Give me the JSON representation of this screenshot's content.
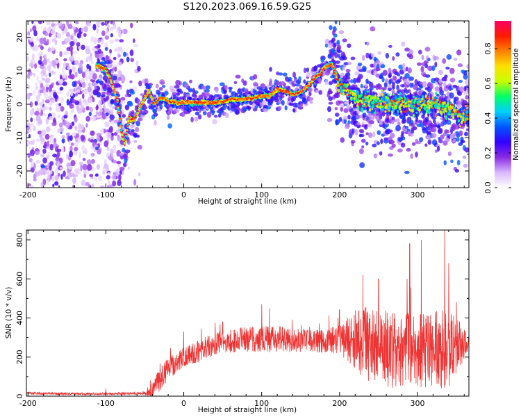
{
  "title": "S120.2023.069.16.59.G25",
  "chart_data": [
    {
      "type": "heatmap",
      "title": "S120.2023.069.16.59.G25",
      "xlabel": "Height of straight line (km)",
      "ylabel": "Frequency (Hz)",
      "xlim": [
        -202,
        366
      ],
      "ylim": [
        -25,
        25
      ],
      "xticks": [
        -200,
        -100,
        0,
        100,
        200,
        300
      ],
      "yticks": [
        -20,
        -10,
        0,
        10,
        20
      ],
      "colorbar": {
        "label": "Normalized spectral amplitude",
        "range": [
          0,
          0.96
        ],
        "ticks": [
          0.0,
          0.2,
          0.4,
          0.6,
          0.8
        ],
        "colormap": [
          "#ffffff",
          "#d9b8ff",
          "#8a2be2",
          "#3300ff",
          "#0055ff",
          "#00cfff",
          "#00ff66",
          "#c6ff00",
          "#ffe000",
          "#ff8000",
          "#ff1a00",
          "#ff0066"
        ]
      },
      "ridge": {
        "name": "dominant frequency",
        "x": [
          -110,
          -100,
          -92,
          -85,
          -80,
          -76,
          -70,
          -65,
          -58,
          -52,
          -45,
          -38,
          -30,
          -20,
          -10,
          0,
          20,
          40,
          55,
          60,
          80,
          100,
          110,
          120,
          130,
          140,
          150,
          160,
          170,
          175,
          180,
          190,
          195,
          200,
          210,
          220,
          240,
          260,
          280,
          300,
          320,
          340,
          355,
          366
        ],
        "y": [
          11.5,
          10.5,
          6,
          1,
          -8,
          -12,
          -4,
          -5,
          -2,
          1,
          4,
          0,
          2,
          1,
          0.5,
          0.5,
          0.5,
          0.5,
          1,
          1.5,
          1.5,
          2.5,
          2.5,
          4.5,
          4,
          3,
          3.5,
          5.5,
          8.5,
          9,
          11,
          12,
          9,
          6,
          4,
          1.5,
          1,
          0.5,
          0,
          -0.5,
          0,
          -1.5,
          -3.5,
          -3.5
        ]
      },
      "noise_region_x": [
        -202,
        -75
      ]
    },
    {
      "type": "line",
      "xlabel": "Height of straight line (km)",
      "ylabel": "SNR (10 * v/v)",
      "xlim": [
        -202,
        366
      ],
      "ylim": [
        0,
        850
      ],
      "xticks": [
        -200,
        -100,
        0,
        100,
        200,
        300
      ],
      "yticks": [
        0,
        200,
        400,
        600,
        800
      ],
      "color": "#ee3333",
      "series": [
        {
          "x": [
            -202,
            -150,
            -100,
            -50,
            -40,
            -30,
            -20,
            -10,
            0,
            20,
            40,
            60,
            80,
            100,
            120,
            140,
            160,
            180,
            200,
            210,
            220,
            240,
            260,
            280,
            300,
            320,
            340,
            355,
            366
          ],
          "baseline": [
            15,
            12,
            12,
            15,
            30,
            90,
            140,
            170,
            200,
            230,
            270,
            280,
            290,
            290,
            295,
            285,
            285,
            280,
            290,
            290,
            280,
            260,
            240,
            240,
            230,
            235,
            240,
            260,
            275
          ],
          "spread": [
            6,
            6,
            6,
            8,
            40,
            60,
            60,
            50,
            50,
            60,
            60,
            60,
            70,
            70,
            70,
            60,
            60,
            60,
            80,
            110,
            170,
            200,
            200,
            200,
            200,
            200,
            200,
            120,
            30
          ],
          "peaks": [
            [
              -100,
              40
            ],
            [
              0,
              330
            ],
            [
              50,
              380
            ],
            [
              100,
              470
            ],
            [
              110,
              450
            ],
            [
              200,
              440
            ],
            [
              230,
              620
            ],
            [
              250,
              600
            ],
            [
              290,
              780
            ],
            [
              305,
              800
            ],
            [
              335,
              850
            ],
            [
              340,
              680
            ],
            [
              350,
              480
            ]
          ]
        }
      ]
    }
  ]
}
